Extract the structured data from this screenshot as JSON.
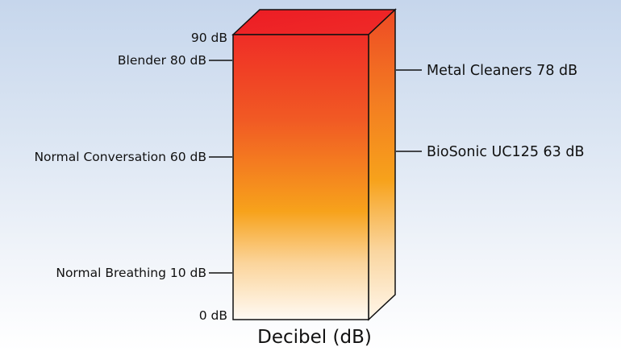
{
  "diagram": {
    "title": "Decibel (dB)",
    "scale": {
      "min_label": "0 dB",
      "max_label": "90 dB",
      "min": 0,
      "max": 90
    },
    "left_markers": [
      {
        "label": "Blender 80 dB",
        "value": 80
      },
      {
        "label": "Normal Conversation 60 dB",
        "value": 60
      },
      {
        "label": "Normal Breathing 10 dB",
        "value": 10
      }
    ],
    "right_markers": [
      {
        "label": "Metal Cleaners 78 dB",
        "value": 78
      },
      {
        "label": "BioSonic UC125 63 dB",
        "value": 63
      }
    ],
    "colors": {
      "top_red": "#ee1c24",
      "mid_orange": "#f7a21b",
      "bottom": "#fffdfa",
      "side_dark": "#ee4f23",
      "outline": "#111111"
    }
  }
}
